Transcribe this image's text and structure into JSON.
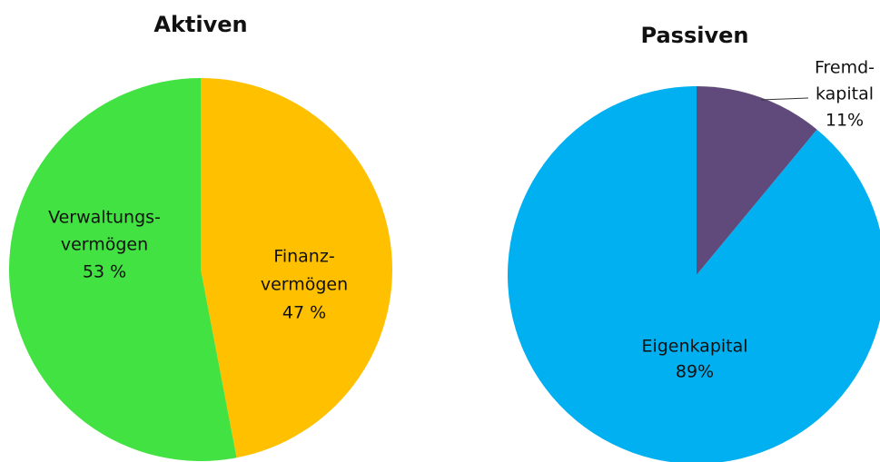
{
  "chart_data": [
    {
      "type": "pie",
      "title": "Aktiven",
      "categories": [
        [
          "Verwaltungs-",
          "vermögen"
        ],
        [
          "Finanz-",
          "vermögen"
        ]
      ],
      "values": [
        53,
        47
      ],
      "value_labels": [
        "53 %",
        "47 %"
      ],
      "colors": [
        "#41e241",
        "#ffc000"
      ]
    },
    {
      "type": "pie",
      "title": "Passiven",
      "categories": [
        [
          "Eigenkapital"
        ],
        [
          "Fremd-",
          "kapital"
        ]
      ],
      "values": [
        89,
        11
      ],
      "value_labels": [
        "89%",
        "11%"
      ],
      "colors": [
        "#00b0f0",
        "#604a7b"
      ]
    }
  ]
}
